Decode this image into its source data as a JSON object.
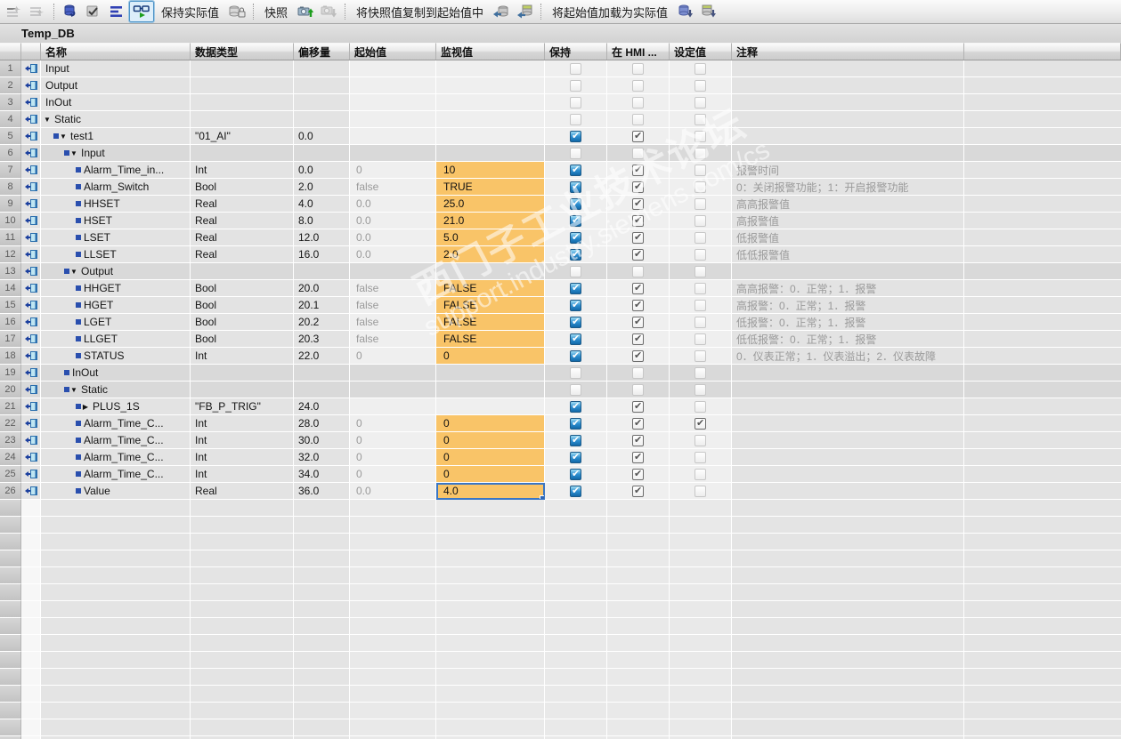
{
  "title": "Temp_DB",
  "toolbar": {
    "items": [
      {
        "kind": "icon",
        "name": "insert-row-icon",
        "icon": "rowstar",
        "disabled": true
      },
      {
        "kind": "icon",
        "name": "add-row-icon",
        "icon": "rowstar2",
        "disabled": true
      },
      {
        "kind": "sep"
      },
      {
        "kind": "icon",
        "name": "reset-start-values-icon",
        "icon": "cyl-undo",
        "disabled": false
      },
      {
        "kind": "icon",
        "name": "update-interface-icon",
        "icon": "update",
        "disabled": false
      },
      {
        "kind": "icon",
        "name": "expand-members-icon",
        "icon": "expand",
        "disabled": false
      },
      {
        "kind": "toggle",
        "name": "monitor-all-button",
        "icon": "glasses",
        "active": true
      },
      {
        "kind": "text",
        "name": "keep-actual-values-button",
        "label": "保持实际值"
      },
      {
        "kind": "icon",
        "name": "db-retain-icon",
        "icon": "cyl-lock",
        "disabled": false
      },
      {
        "kind": "sep"
      },
      {
        "kind": "text",
        "name": "snapshot-button",
        "label": "快照"
      },
      {
        "kind": "icon",
        "name": "snapshot-capture-icon",
        "icon": "cam-up",
        "disabled": false
      },
      {
        "kind": "icon",
        "name": "snapshot-restore-icon",
        "icon": "cam-down",
        "disabled": true
      },
      {
        "kind": "sep"
      },
      {
        "kind": "text",
        "name": "copy-snapshot-to-start-button",
        "label": "将快照值复制到起始值中"
      },
      {
        "kind": "icon",
        "name": "copy-snapshot-icon",
        "icon": "cyl-left",
        "disabled": false
      },
      {
        "kind": "icon",
        "name": "copy-snapshot-all-icon",
        "icon": "cyl-left2",
        "disabled": false
      },
      {
        "kind": "sep"
      },
      {
        "kind": "text",
        "name": "load-start-as-actual-button",
        "label": "将起始值加载为实际值"
      },
      {
        "kind": "icon",
        "name": "load-start-icon",
        "icon": "cyl-down",
        "disabled": false
      },
      {
        "kind": "icon",
        "name": "load-start-all-icon",
        "icon": "cyl-down2",
        "disabled": false
      }
    ]
  },
  "columns": [
    "名称",
    "数据类型",
    "偏移量",
    "起始值",
    "监视值",
    "保持",
    "在 HMI ...",
    "设定值",
    "注释"
  ],
  "watermark": {
    "line1": "西门子工业技术论坛",
    "line2": "support.industry.siemens.com/cs"
  },
  "colors": {
    "monitor_orange": "#F9C468",
    "retain_blue": "#1274B8",
    "selection_blue": "#3A76C4"
  },
  "empty_row_count": 15,
  "rows": [
    {
      "n": 1,
      "name": "Input",
      "marker": false,
      "arrow": null,
      "indent": 0,
      "type": "",
      "offset": "",
      "start": "",
      "mon": null,
      "retain": "dis",
      "hmi": "dis",
      "set": "dis",
      "comment": "",
      "group": false
    },
    {
      "n": 2,
      "name": "Output",
      "marker": false,
      "arrow": null,
      "indent": 0,
      "type": "",
      "offset": "",
      "start": "",
      "mon": null,
      "retain": "dis",
      "hmi": "dis",
      "set": "dis",
      "comment": "",
      "group": false
    },
    {
      "n": 3,
      "name": "InOut",
      "marker": false,
      "arrow": null,
      "indent": 0,
      "type": "",
      "offset": "",
      "start": "",
      "mon": null,
      "retain": "dis",
      "hmi": "dis",
      "set": "dis",
      "comment": "",
      "group": false
    },
    {
      "n": 4,
      "name": "Static",
      "marker": false,
      "arrow": "down",
      "indent": 0,
      "type": "",
      "offset": "",
      "start": "",
      "mon": null,
      "retain": "dis",
      "hmi": "dis",
      "set": "dis",
      "comment": "",
      "group": false
    },
    {
      "n": 5,
      "name": "test1",
      "marker": true,
      "arrow": "down",
      "indent": 1,
      "type": "\"01_AI\"",
      "offset": "0.0",
      "start": "",
      "mon": null,
      "retain": "on",
      "hmi": "chk",
      "set": "dis",
      "comment": "",
      "group": false
    },
    {
      "n": 6,
      "name": "Input",
      "marker": true,
      "arrow": "down",
      "indent": 2,
      "type": "",
      "offset": "",
      "start": "",
      "mon": null,
      "retain": "dis",
      "hmi": "dis",
      "set": "dis",
      "comment": "",
      "group": true
    },
    {
      "n": 7,
      "name": "Alarm_Time_in...",
      "marker": true,
      "arrow": null,
      "indent": 3,
      "type": "Int",
      "offset": "0.0",
      "start": "0",
      "mon": "10",
      "retain": "on",
      "hmi": "chk",
      "set": "dis",
      "comment": "报警时间",
      "group": false
    },
    {
      "n": 8,
      "name": "Alarm_Switch",
      "marker": true,
      "arrow": null,
      "indent": 3,
      "type": "Bool",
      "offset": "2.0",
      "start": "false",
      "mon": "TRUE",
      "retain": "on",
      "hmi": "chk",
      "set": "dis",
      "comment": "0：关闭报警功能；1：开启报警功能",
      "group": false
    },
    {
      "n": 9,
      "name": "HHSET",
      "marker": true,
      "arrow": null,
      "indent": 3,
      "type": "Real",
      "offset": "4.0",
      "start": "0.0",
      "mon": "25.0",
      "retain": "on",
      "hmi": "chk",
      "set": "dis",
      "comment": "高高报警值",
      "group": false
    },
    {
      "n": 10,
      "name": "HSET",
      "marker": true,
      "arrow": null,
      "indent": 3,
      "type": "Real",
      "offset": "8.0",
      "start": "0.0",
      "mon": "21.0",
      "retain": "on",
      "hmi": "chk",
      "set": "dis",
      "comment": "高报警值",
      "group": false
    },
    {
      "n": 11,
      "name": "LSET",
      "marker": true,
      "arrow": null,
      "indent": 3,
      "type": "Real",
      "offset": "12.0",
      "start": "0.0",
      "mon": "5.0",
      "retain": "on",
      "hmi": "chk",
      "set": "dis",
      "comment": "低报警值",
      "group": false
    },
    {
      "n": 12,
      "name": "LLSET",
      "marker": true,
      "arrow": null,
      "indent": 3,
      "type": "Real",
      "offset": "16.0",
      "start": "0.0",
      "mon": "2.0",
      "retain": "on",
      "hmi": "chk",
      "set": "dis",
      "comment": "低低报警值",
      "group": false
    },
    {
      "n": 13,
      "name": "Output",
      "marker": true,
      "arrow": "down",
      "indent": 2,
      "type": "",
      "offset": "",
      "start": "",
      "mon": null,
      "retain": "dis",
      "hmi": "dis",
      "set": "dis",
      "comment": "",
      "group": true
    },
    {
      "n": 14,
      "name": "HHGET",
      "marker": true,
      "arrow": null,
      "indent": 3,
      "type": "Bool",
      "offset": "20.0",
      "start": "false",
      "mon": "FALSE",
      "retain": "on",
      "hmi": "chk",
      "set": "dis",
      "comment": "高高报警：0．正常；1．报警",
      "group": false
    },
    {
      "n": 15,
      "name": "HGET",
      "marker": true,
      "arrow": null,
      "indent": 3,
      "type": "Bool",
      "offset": "20.1",
      "start": "false",
      "mon": "FALSE",
      "retain": "on",
      "hmi": "chk",
      "set": "dis",
      "comment": "高报警：0．正常；1．报警",
      "group": false
    },
    {
      "n": 16,
      "name": "LGET",
      "marker": true,
      "arrow": null,
      "indent": 3,
      "type": "Bool",
      "offset": "20.2",
      "start": "false",
      "mon": "FALSE",
      "retain": "on",
      "hmi": "chk",
      "set": "dis",
      "comment": "低报警：0．正常；1．报警",
      "group": false
    },
    {
      "n": 17,
      "name": "LLGET",
      "marker": true,
      "arrow": null,
      "indent": 3,
      "type": "Bool",
      "offset": "20.3",
      "start": "false",
      "mon": "FALSE",
      "retain": "on",
      "hmi": "chk",
      "set": "dis",
      "comment": "低低报警：0．正常；1．报警",
      "group": false
    },
    {
      "n": 18,
      "name": "STATUS",
      "marker": true,
      "arrow": null,
      "indent": 3,
      "type": "Int",
      "offset": "22.0",
      "start": "0",
      "mon": "0",
      "retain": "on",
      "hmi": "chk",
      "set": "dis",
      "comment": "0．仪表正常；1．仪表溢出；2．仪表故障",
      "group": false
    },
    {
      "n": 19,
      "name": "InOut",
      "marker": true,
      "arrow": null,
      "indent": 2,
      "type": "",
      "offset": "",
      "start": "",
      "mon": null,
      "retain": "dis",
      "hmi": "dis",
      "set": "dis",
      "comment": "",
      "group": true
    },
    {
      "n": 20,
      "name": "Static",
      "marker": true,
      "arrow": "down",
      "indent": 2,
      "type": "",
      "offset": "",
      "start": "",
      "mon": null,
      "retain": "dis",
      "hmi": "dis",
      "set": "dis",
      "comment": "",
      "group": true
    },
    {
      "n": 21,
      "name": "PLUS_1S",
      "marker": true,
      "arrow": "right",
      "indent": 3,
      "type": "\"FB_P_TRIG\"",
      "offset": "24.0",
      "start": "",
      "mon": null,
      "retain": "on",
      "hmi": "chk",
      "set": "dis",
      "comment": "",
      "group": false
    },
    {
      "n": 22,
      "name": "Alarm_Time_C...",
      "marker": true,
      "arrow": null,
      "indent": 3,
      "type": "Int",
      "offset": "28.0",
      "start": "0",
      "mon": "0",
      "retain": "on",
      "hmi": "chk",
      "set": "chk",
      "comment": "",
      "group": false
    },
    {
      "n": 23,
      "name": "Alarm_Time_C...",
      "marker": true,
      "arrow": null,
      "indent": 3,
      "type": "Int",
      "offset": "30.0",
      "start": "0",
      "mon": "0",
      "retain": "on",
      "hmi": "chk",
      "set": "dis",
      "comment": "",
      "group": false
    },
    {
      "n": 24,
      "name": "Alarm_Time_C...",
      "marker": true,
      "arrow": null,
      "indent": 3,
      "type": "Int",
      "offset": "32.0",
      "start": "0",
      "mon": "0",
      "retain": "on",
      "hmi": "chk",
      "set": "dis",
      "comment": "",
      "group": false
    },
    {
      "n": 25,
      "name": "Alarm_Time_C...",
      "marker": true,
      "arrow": null,
      "indent": 3,
      "type": "Int",
      "offset": "34.0",
      "start": "0",
      "mon": "0",
      "retain": "on",
      "hmi": "chk",
      "set": "dis",
      "comment": "",
      "group": false
    },
    {
      "n": 26,
      "name": "Value",
      "marker": true,
      "arrow": null,
      "indent": 3,
      "type": "Real",
      "offset": "36.0",
      "start": "0.0",
      "mon": "4.0",
      "retain": "on",
      "hmi": "chk",
      "set": "dis",
      "comment": "",
      "group": false,
      "selected": true
    }
  ]
}
